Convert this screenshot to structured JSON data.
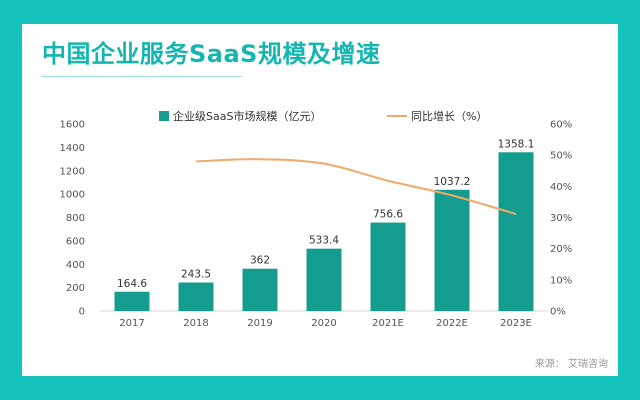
{
  "title": "中国企业服务SaaS规模及增速",
  "source": "来源： 艾瑞咨询",
  "colors": {
    "bar": "#149c8f",
    "line": "#f0a96a",
    "background": "#15c2bd",
    "title": "#13b7b0"
  },
  "chart_data": {
    "type": "bar",
    "categories": [
      "2017",
      "2018",
      "2019",
      "2020",
      "2021E",
      "2022E",
      "2023E"
    ],
    "series": [
      {
        "name": "企业级SaaS市场规模（亿元）",
        "type": "bar",
        "axis": "left",
        "values": [
          164.6,
          243.5,
          362,
          533.4,
          756.6,
          1037.2,
          1358.1
        ],
        "labels": [
          "164.6",
          "243.5",
          "362",
          "533.4",
          "756.6",
          "1037.2",
          "1358.1"
        ]
      },
      {
        "name": "同比增长（%）",
        "type": "line",
        "axis": "right",
        "values": [
          null,
          48,
          48.7,
          47.3,
          41.8,
          37.1,
          31.1
        ]
      }
    ],
    "yleft": {
      "min": 0,
      "max": 1600,
      "ticks": [
        "0",
        "200",
        "400",
        "600",
        "800",
        "1000",
        "1200",
        "1400",
        "1600"
      ]
    },
    "yright": {
      "min": 0,
      "max": 60,
      "ticks": [
        "0%",
        "10%",
        "20%",
        "30%",
        "40%",
        "50%",
        "60%"
      ]
    },
    "legend": "top",
    "grid": false
  }
}
